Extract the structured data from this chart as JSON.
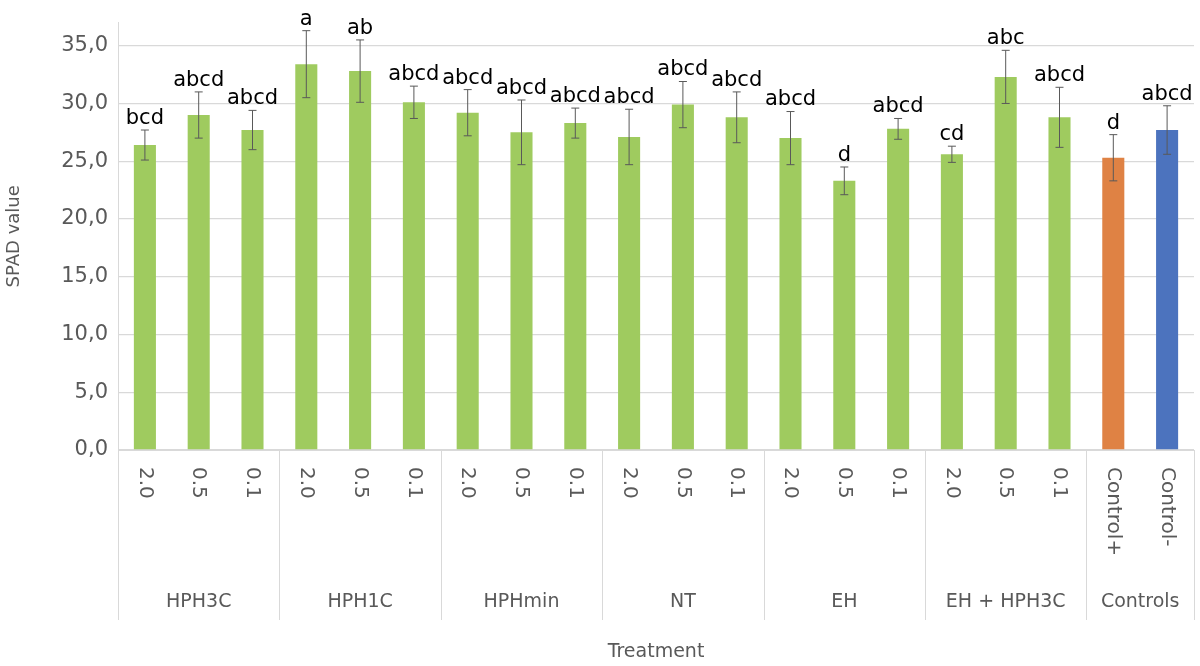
{
  "chart_data": {
    "type": "bar",
    "xlabel": "Treatment",
    "ylabel": "SPAD value",
    "categories": [
      "2.0",
      "0.5",
      "0.1",
      "2.0",
      "0.5",
      "0.1",
      "2.0",
      "0.5",
      "0.1",
      "2.0",
      "0.5",
      "0.1",
      "2.0",
      "0.5",
      "0.1",
      "2.0",
      "0.5",
      "0.1",
      "Control+",
      "Control-"
    ],
    "values": [
      26.4,
      29.0,
      27.7,
      33.4,
      32.8,
      30.1,
      29.2,
      27.5,
      28.3,
      27.1,
      29.9,
      28.8,
      27.0,
      23.3,
      27.8,
      25.6,
      32.3,
      28.8,
      25.3,
      27.7
    ],
    "errors": [
      1.3,
      2.0,
      1.7,
      2.9,
      2.7,
      1.4,
      2.0,
      2.8,
      1.3,
      2.4,
      2.0,
      2.2,
      2.3,
      1.2,
      0.9,
      0.7,
      2.3,
      2.6,
      2.0,
      2.1
    ],
    "colors": [
      "#9fcb5f",
      "#9fcb5f",
      "#9fcb5f",
      "#9fcb5f",
      "#9fcb5f",
      "#9fcb5f",
      "#9fcb5f",
      "#9fcb5f",
      "#9fcb5f",
      "#9fcb5f",
      "#9fcb5f",
      "#9fcb5f",
      "#9fcb5f",
      "#9fcb5f",
      "#9fcb5f",
      "#9fcb5f",
      "#9fcb5f",
      "#9fcb5f",
      "#df8244",
      "#4c73be"
    ],
    "value_labels": [
      "bcd",
      "abcd",
      "abcd",
      "a",
      "ab",
      "abcd",
      "abcd",
      "abcd",
      "abcd",
      "abcd",
      "abcd",
      "abcd",
      "abcd",
      "d",
      "abcd",
      "cd",
      "abc",
      "abcd",
      "d",
      "abcd"
    ],
    "ylim": [
      0,
      37
    ],
    "yticks": [
      {
        "value": 0,
        "label": "0,0"
      },
      {
        "value": 5,
        "label": "5,0"
      },
      {
        "value": 10,
        "label": "10,0"
      },
      {
        "value": 15,
        "label": "15,0"
      },
      {
        "value": 20,
        "label": "20,0"
      },
      {
        "value": 25,
        "label": "25,0"
      },
      {
        "value": 30,
        "label": "30,0"
      },
      {
        "value": 35,
        "label": "35,0"
      }
    ],
    "grid": "y",
    "annotations": [
      "HPH3C",
      "HPH1C",
      "HPHmin",
      "NT",
      "EH",
      "EH + HPH3C",
      "Controls"
    ]
  }
}
